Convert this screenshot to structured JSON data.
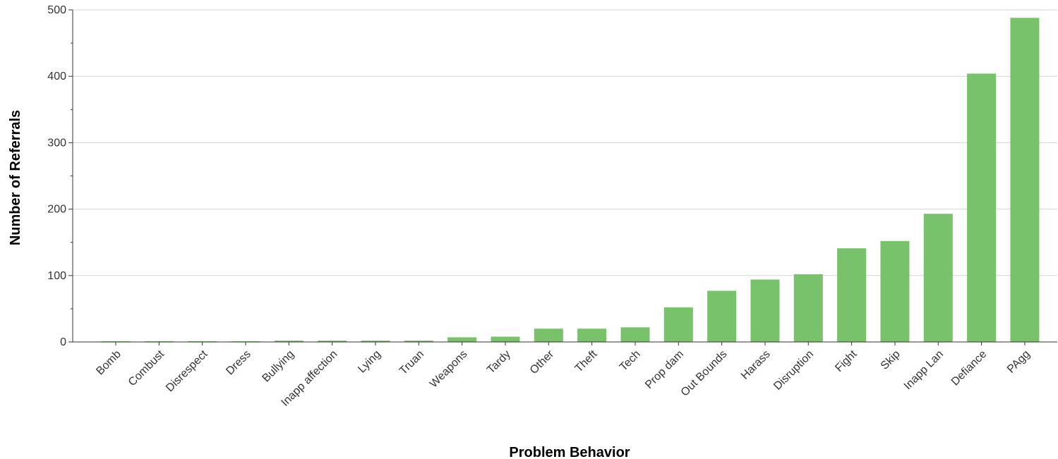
{
  "chart_data": {
    "type": "bar",
    "xlabel": "Problem Behavior",
    "ylabel": "Number of Referrals",
    "categories": [
      "Bomb",
      "Combust",
      "Disrespect",
      "Dress",
      "Bullying",
      "Inapp affection",
      "Lying",
      "Truan",
      "Weapons",
      "Tardy",
      "Other",
      "Theft",
      "Tech",
      "Prop dam",
      "Out Bounds",
      "Harass",
      "Disruption",
      "Fight",
      "Skip",
      "Inapp Lan",
      "Defiance",
      "PAgg"
    ],
    "values": [
      1,
      1,
      1,
      1,
      2,
      2,
      2,
      2,
      7,
      8,
      20,
      20,
      22,
      52,
      77,
      94,
      102,
      141,
      152,
      193,
      404,
      488
    ],
    "ylim": [
      0,
      500
    ],
    "yticks": [
      0,
      100,
      200,
      300,
      400,
      500
    ],
    "grid": true,
    "bar_color": "#77c26a"
  }
}
